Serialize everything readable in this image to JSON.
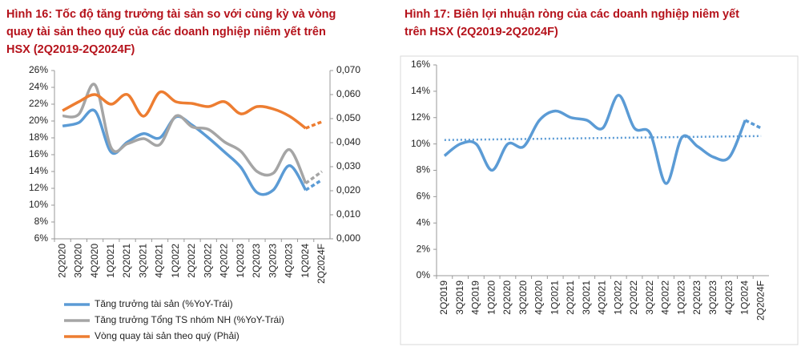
{
  "chart_data": [
    {
      "type": "line",
      "title": [
        "Hình 16: Tốc độ tăng trưởng tài sản so với cùng kỳ và vòng",
        "quay tài sản theo quý của các doanh nghiệp niêm yết trên",
        "HSX (2Q2019-2Q2024F)"
      ],
      "categories": [
        "2Q2020",
        "3Q2020",
        "4Q2020",
        "1Q2021",
        "2Q2021",
        "3Q2021",
        "4Q2021",
        "1Q2022",
        "2Q2022",
        "3Q2022",
        "4Q2022",
        "1Q2023",
        "2Q2023",
        "3Q2023",
        "4Q2023",
        "1Q2024",
        "2Q2024F"
      ],
      "ylim": [
        6,
        26
      ],
      "yticks": [
        {
          "value": 6,
          "label": "6%"
        },
        {
          "value": 8,
          "label": "8%"
        },
        {
          "value": 10,
          "label": "10%"
        },
        {
          "value": 12,
          "label": "12%"
        },
        {
          "value": 14,
          "label": "14%"
        },
        {
          "value": 16,
          "label": "16%"
        },
        {
          "value": 18,
          "label": "18%"
        },
        {
          "value": 20,
          "label": "20%"
        },
        {
          "value": 22,
          "label": "22%"
        },
        {
          "value": 24,
          "label": "24%"
        },
        {
          "value": 26,
          "label": "26%"
        }
      ],
      "y2lim": [
        0,
        0.07
      ],
      "y2ticks": [
        {
          "value": 0,
          "label": "0,000"
        },
        {
          "value": 0.01,
          "label": "0,010"
        },
        {
          "value": 0.02,
          "label": "0,020"
        },
        {
          "value": 0.03,
          "label": "0,030"
        },
        {
          "value": 0.04,
          "label": "0,040"
        },
        {
          "value": 0.05,
          "label": "0,050"
        },
        {
          "value": 0.06,
          "label": "0,060"
        },
        {
          "value": 0.07,
          "label": "0,070"
        }
      ],
      "dashed_last": true,
      "series": [
        {
          "name": "Tăng trưởng tài sản (%YoY-Trái)",
          "color": "#5b9bd5",
          "values": [
            19.4,
            19.8,
            21.2,
            16.3,
            17.5,
            18.5,
            18,
            20.5,
            19.5,
            18,
            16.3,
            14.5,
            11.5,
            11.8,
            14.7,
            11.8,
            13
          ]
        },
        {
          "name": "Tăng trưởng Tổng TS nhóm NH (%YoY-Trái)",
          "color": "#a5a5a5",
          "values": [
            20.6,
            20.8,
            24.3,
            16.8,
            17.3,
            17.9,
            17.2,
            20.6,
            19.3,
            19,
            17.5,
            16.4,
            14,
            13.8,
            16.6,
            12.6,
            14
          ]
        },
        {
          "name": "Vòng quay tài sản theo quý (Phải)",
          "color": "#ed7d31",
          "axis": "y2",
          "values": [
            0.0533,
            0.057,
            0.06,
            0.056,
            0.06,
            0.051,
            0.061,
            0.057,
            0.0563,
            0.055,
            0.057,
            0.052,
            0.055,
            0.054,
            0.051,
            0.046,
            0.0487
          ]
        }
      ]
    },
    {
      "type": "line",
      "title": [
        "Hình 17: Biên lợi nhuận ròng của các doanh nghiệp niêm yết",
        "trên HSX (2Q2019-2Q2024F)"
      ],
      "categories": [
        "2Q2019",
        "3Q2019",
        "4Q2019",
        "1Q2020",
        "2Q2020",
        "3Q2020",
        "4Q2020",
        "1Q2021",
        "2Q2021",
        "3Q2021",
        "4Q2021",
        "1Q2022",
        "2Q2022",
        "3Q2022",
        "4Q2022",
        "1Q2023",
        "2Q2023",
        "3Q2023",
        "4Q2023",
        "1Q2024",
        "2Q2024F"
      ],
      "ylim": [
        0,
        16
      ],
      "yticks": [
        {
          "value": 0,
          "label": "0%"
        },
        {
          "value": 2,
          "label": "2%"
        },
        {
          "value": 4,
          "label": "4%"
        },
        {
          "value": 6,
          "label": "6%"
        },
        {
          "value": 8,
          "label": "8%"
        },
        {
          "value": 10,
          "label": "10%"
        },
        {
          "value": 12,
          "label": "12%"
        },
        {
          "value": 14,
          "label": "14%"
        },
        {
          "value": 16,
          "label": "16%"
        }
      ],
      "dashed_last": true,
      "trendline": [
        10.3,
        10.6
      ],
      "series": [
        {
          "color": "#5b9bd5",
          "values": [
            9.1,
            10,
            10,
            8,
            10,
            9.8,
            11.8,
            12.5,
            12,
            11.8,
            11.2,
            13.7,
            11.2,
            10.8,
            7,
            10.5,
            9.8,
            9,
            9,
            11.8,
            11.2
          ]
        }
      ]
    }
  ]
}
